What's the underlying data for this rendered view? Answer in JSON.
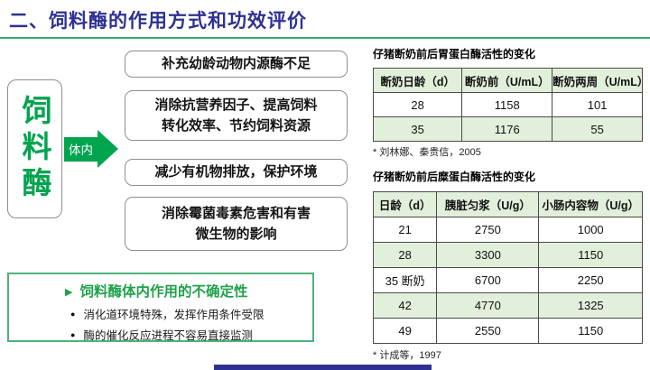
{
  "header": {
    "title": "二、饲料酶的作用方式和功效评价"
  },
  "colors": {
    "title_navy": "#2E3192",
    "accent_green": "#00A44F",
    "underline_green": "#35AC72",
    "table_stripe_green": "#E2EFDA",
    "uncertainty_border_green": "#4DB27E"
  },
  "diagram": {
    "enzyme_label": "饲料酶",
    "arrow_label": "体内",
    "effect_boxes": [
      "补充幼龄动物内源酶不足",
      "消除抗营养因子、提高饲料\n转化效率、节约饲料资源",
      "减少有机物排放，保护环境",
      "消除霉菌毒素危害和有害\n微生物的影响"
    ]
  },
  "uncertainty": {
    "title": "饲料酶体内作用的不确定性",
    "bullets": [
      "消化道环境特殊，发挥作用条件受限",
      "酶的催化反应进程不容易直接监测"
    ]
  },
  "tables": [
    {
      "title": "仔猪断奶前后胃蛋白酶活性的变化",
      "headers": [
        "断奶日龄（d）",
        "断奶前（U/mL）",
        "断奶两周（U/mL）"
      ],
      "rows": [
        [
          "28",
          "1158",
          "101"
        ],
        [
          "35",
          "1176",
          "55"
        ]
      ],
      "citation": "* 刘林娜、秦贵信，2005"
    },
    {
      "title": "仔猪断奶前后糜蛋白酶活性的变化",
      "headers": [
        "日龄（d）",
        "胰脏匀浆（U/g）",
        "小肠内容物（U/g）"
      ],
      "rows": [
        [
          "21",
          "2750",
          "1000"
        ],
        [
          "28",
          "3300",
          "1150"
        ],
        [
          "35 断奶",
          "6700",
          "2250"
        ],
        [
          "42",
          "4770",
          "1325"
        ],
        [
          "49",
          "2550",
          "1150"
        ]
      ],
      "citation": "* 计成等，1997"
    }
  ]
}
